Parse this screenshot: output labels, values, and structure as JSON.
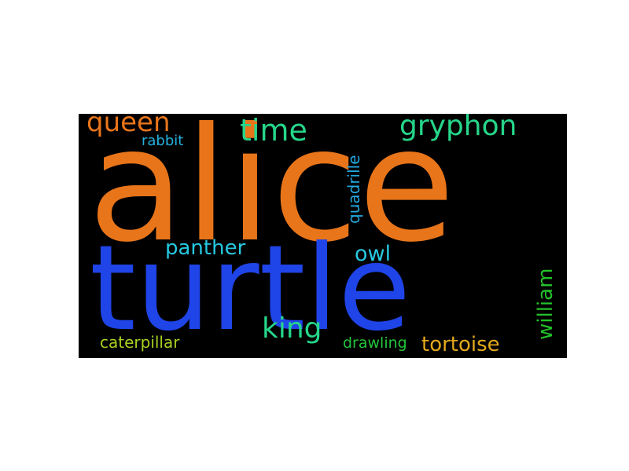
{
  "wordcloud": {
    "background": "#000000",
    "words": [
      {
        "id": "alice",
        "text": "alice",
        "color": "#e8751a"
      },
      {
        "id": "turtle",
        "text": "turtle",
        "color": "#1f44e8"
      },
      {
        "id": "queen",
        "text": "queen",
        "color": "#e8751a"
      },
      {
        "id": "time",
        "text": "time",
        "color": "#25d68a"
      },
      {
        "id": "gryphon",
        "text": "gryphon",
        "color": "#25d68a"
      },
      {
        "id": "rabbit",
        "text": "rabbit",
        "color": "#24b0e0"
      },
      {
        "id": "quadrille",
        "text": "quadrille",
        "color": "#24a8e0",
        "orientation": "vertical"
      },
      {
        "id": "panther",
        "text": "panther",
        "color": "#26c9e0"
      },
      {
        "id": "owl",
        "text": "owl",
        "color": "#26c9e0"
      },
      {
        "id": "william",
        "text": "william",
        "color": "#22c22a",
        "orientation": "vertical"
      },
      {
        "id": "king",
        "text": "king",
        "color": "#25d68a"
      },
      {
        "id": "caterpillar",
        "text": "caterpillar",
        "color": "#a8d020"
      },
      {
        "id": "drawling",
        "text": "drawling",
        "color": "#22c53a"
      },
      {
        "id": "tortoise",
        "text": "tortoise",
        "color": "#e2a81c"
      }
    ]
  }
}
